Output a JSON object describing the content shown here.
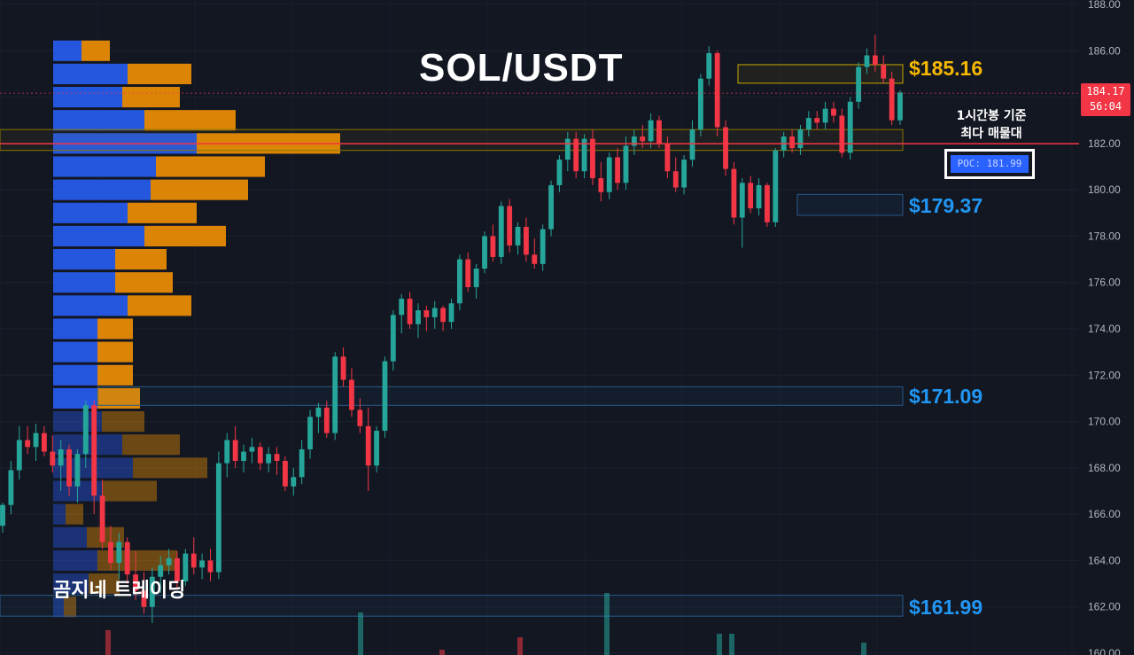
{
  "header": {
    "title": "SOL/USDT"
  },
  "brand": {
    "label": "곰지네 트레이딩"
  },
  "current_price": {
    "value": "184.17",
    "countdown": "56:04"
  },
  "poc_note": {
    "line1": "1시간봉 기준",
    "line2": "최다 매물대",
    "badge": "POC: 181.99"
  },
  "levels": {
    "l1": "$185.16",
    "l2": "$179.37",
    "l3": "$171.09",
    "l4": "$161.99"
  },
  "colors": {
    "bg": "#131722",
    "up": "#26a69a",
    "down": "#f23645",
    "buy": "#2962ff",
    "sell": "#ff9800",
    "poc": "#f23645"
  },
  "chart_data": {
    "type": "candlestick",
    "ylim": [
      160,
      188
    ],
    "yticks": [
      "160.00",
      "162.00",
      "164.00",
      "166.00",
      "168.00",
      "170.00",
      "172.00",
      "174.00",
      "176.00",
      "178.00",
      "180.00",
      "182.00",
      "184.00",
      "186.00",
      "188.00"
    ],
    "candles": [
      [
        165.5,
        166.5,
        165.2,
        166.4
      ],
      [
        166.4,
        168.3,
        166.0,
        167.9
      ],
      [
        167.9,
        169.8,
        167.5,
        169.2
      ],
      [
        169.2,
        169.8,
        168.6,
        168.9
      ],
      [
        168.9,
        169.9,
        168.3,
        169.5
      ],
      [
        169.5,
        169.8,
        168.5,
        168.7
      ],
      [
        168.7,
        169.4,
        167.8,
        168.1
      ],
      [
        168.1,
        169.2,
        167.0,
        168.8
      ],
      [
        168.8,
        169.0,
        166.8,
        167.2
      ],
      [
        167.2,
        168.8,
        166.5,
        168.6
      ],
      [
        168.6,
        170.9,
        168.0,
        170.7
      ],
      [
        170.7,
        170.9,
        166.0,
        166.8
      ],
      [
        166.8,
        167.5,
        164.5,
        164.8
      ],
      [
        164.8,
        165.5,
        163.6,
        163.9
      ],
      [
        163.9,
        165.2,
        163.2,
        164.8
      ],
      [
        164.8,
        165.0,
        163.0,
        163.4
      ],
      [
        163.4,
        164.4,
        162.3,
        162.7
      ],
      [
        162.7,
        163.5,
        161.7,
        162.0
      ],
      [
        162.0,
        163.7,
        161.3,
        163.3
      ],
      [
        163.3,
        164.2,
        162.6,
        163.8
      ],
      [
        163.8,
        164.5,
        163.4,
        164.1
      ],
      [
        164.1,
        164.4,
        162.8,
        163.1
      ],
      [
        163.1,
        164.5,
        162.9,
        164.3
      ],
      [
        164.3,
        165.0,
        163.4,
        163.7
      ],
      [
        163.7,
        164.3,
        163.2,
        164.0
      ],
      [
        164.0,
        164.5,
        163.1,
        163.5
      ],
      [
        163.5,
        168.7,
        163.2,
        168.2
      ],
      [
        168.2,
        169.5,
        167.6,
        169.2
      ],
      [
        169.2,
        169.8,
        168.0,
        168.3
      ],
      [
        168.3,
        169.0,
        167.8,
        168.7
      ],
      [
        168.7,
        169.3,
        168.2,
        168.9
      ],
      [
        168.9,
        169.1,
        167.9,
        168.2
      ],
      [
        168.2,
        168.9,
        167.8,
        168.6
      ],
      [
        168.6,
        168.9,
        167.7,
        168.3
      ],
      [
        168.3,
        168.5,
        167.0,
        167.2
      ],
      [
        167.2,
        168.0,
        166.8,
        167.6
      ],
      [
        167.6,
        169.2,
        167.3,
        168.8
      ],
      [
        168.8,
        170.5,
        168.4,
        170.2
      ],
      [
        170.2,
        170.8,
        169.5,
        170.6
      ],
      [
        170.6,
        170.9,
        169.3,
        169.5
      ],
      [
        169.5,
        173.0,
        169.2,
        172.8
      ],
      [
        172.8,
        173.2,
        171.5,
        171.8
      ],
      [
        171.8,
        172.3,
        170.2,
        170.5
      ],
      [
        170.5,
        171.0,
        169.5,
        169.8
      ],
      [
        169.8,
        170.6,
        167.0,
        168.1
      ],
      [
        168.1,
        169.8,
        167.8,
        169.6
      ],
      [
        169.6,
        172.8,
        169.3,
        172.6
      ],
      [
        172.6,
        174.8,
        172.2,
        174.6
      ],
      [
        174.6,
        175.5,
        173.8,
        175.3
      ],
      [
        175.3,
        175.6,
        174.0,
        174.2
      ],
      [
        174.2,
        175.1,
        173.6,
        174.8
      ],
      [
        174.8,
        175.0,
        173.9,
        174.5
      ],
      [
        174.5,
        175.2,
        174.0,
        174.9
      ],
      [
        174.9,
        175.0,
        173.9,
        174.3
      ],
      [
        174.3,
        175.3,
        174.0,
        175.1
      ],
      [
        175.1,
        177.2,
        174.8,
        177.0
      ],
      [
        177.0,
        177.3,
        175.6,
        175.8
      ],
      [
        175.8,
        176.8,
        175.3,
        176.6
      ],
      [
        176.6,
        178.2,
        176.4,
        178.0
      ],
      [
        178.0,
        178.5,
        176.9,
        177.1
      ],
      [
        177.1,
        179.5,
        176.8,
        179.3
      ],
      [
        179.3,
        179.6,
        177.3,
        177.6
      ],
      [
        177.6,
        178.6,
        177.2,
        178.4
      ],
      [
        178.4,
        178.8,
        176.9,
        177.2
      ],
      [
        177.2,
        177.9,
        176.6,
        176.8
      ],
      [
        176.8,
        178.5,
        176.5,
        178.3
      ],
      [
        178.3,
        180.4,
        178.0,
        180.2
      ],
      [
        180.2,
        181.5,
        179.9,
        181.3
      ],
      [
        181.3,
        182.5,
        180.8,
        182.2
      ],
      [
        182.2,
        182.5,
        180.5,
        180.8
      ],
      [
        180.8,
        182.4,
        180.5,
        182.2
      ],
      [
        182.2,
        182.6,
        180.2,
        180.5
      ],
      [
        180.5,
        181.2,
        179.5,
        179.9
      ],
      [
        179.9,
        181.6,
        179.6,
        181.4
      ],
      [
        181.4,
        181.8,
        180.0,
        180.3
      ],
      [
        180.3,
        182.3,
        180.0,
        181.9
      ],
      [
        181.9,
        182.6,
        181.5,
        182.3
      ],
      [
        182.3,
        182.8,
        181.8,
        182.1
      ],
      [
        182.1,
        183.3,
        181.8,
        183.0
      ],
      [
        183.0,
        183.2,
        181.8,
        182.0
      ],
      [
        182.0,
        182.3,
        180.5,
        180.8
      ],
      [
        180.8,
        181.4,
        179.9,
        180.1
      ],
      [
        180.1,
        181.5,
        179.8,
        181.3
      ],
      [
        181.3,
        183.0,
        181.0,
        182.6
      ],
      [
        182.6,
        185.0,
        182.3,
        184.8
      ],
      [
        184.8,
        186.2,
        184.5,
        185.9
      ],
      [
        185.9,
        186.0,
        182.3,
        182.7
      ],
      [
        182.7,
        183.0,
        180.6,
        180.9
      ],
      [
        180.9,
        181.2,
        178.5,
        178.8
      ],
      [
        178.8,
        180.5,
        177.5,
        180.3
      ],
      [
        180.3,
        180.6,
        179.0,
        179.2
      ],
      [
        179.2,
        180.5,
        178.9,
        180.2
      ],
      [
        180.2,
        180.3,
        178.4,
        178.6
      ],
      [
        178.6,
        181.8,
        178.4,
        181.7
      ],
      [
        181.7,
        182.5,
        181.4,
        182.3
      ],
      [
        182.3,
        182.6,
        181.6,
        181.8
      ],
      [
        181.8,
        182.8,
        181.5,
        182.6
      ],
      [
        182.6,
        183.4,
        182.3,
        183.1
      ],
      [
        183.1,
        183.4,
        182.6,
        182.9
      ],
      [
        182.9,
        183.8,
        182.6,
        183.5
      ],
      [
        183.5,
        183.8,
        182.9,
        183.2
      ],
      [
        183.2,
        183.5,
        181.4,
        181.6
      ],
      [
        181.6,
        184.0,
        181.3,
        183.8
      ],
      [
        183.8,
        185.5,
        183.5,
        185.3
      ],
      [
        185.3,
        186.1,
        185.0,
        185.8
      ],
      [
        185.8,
        186.7,
        185.1,
        185.4
      ],
      [
        185.4,
        185.8,
        184.6,
        184.8
      ],
      [
        184.8,
        185.1,
        182.8,
        183.0
      ],
      [
        183.0,
        184.3,
        182.8,
        184.2
      ]
    ],
    "volume_profile": [
      {
        "price": 162.0,
        "buy": 12,
        "sell": 14
      },
      {
        "price": 163.0,
        "buy": 40,
        "sell": 35
      },
      {
        "price": 164.0,
        "buy": 50,
        "sell": 90
      },
      {
        "price": 165.0,
        "buy": 38,
        "sell": 42
      },
      {
        "price": 166.0,
        "buy": 14,
        "sell": 20
      },
      {
        "price": 167.0,
        "buy": 55,
        "sell": 62
      },
      {
        "price": 168.0,
        "buy": 90,
        "sell": 84
      },
      {
        "price": 169.0,
        "buy": 78,
        "sell": 65
      },
      {
        "price": 170.0,
        "buy": 55,
        "sell": 48
      },
      {
        "price": 171.0,
        "buy": 50,
        "sell": 48
      },
      {
        "price": 172.0,
        "buy": 50,
        "sell": 40
      },
      {
        "price": 173.0,
        "buy": 50,
        "sell": 40
      },
      {
        "price": 174.0,
        "buy": 50,
        "sell": 40
      },
      {
        "price": 175.0,
        "buy": 84,
        "sell": 72
      },
      {
        "price": 176.0,
        "buy": 70,
        "sell": 65
      },
      {
        "price": 177.0,
        "buy": 70,
        "sell": 58
      },
      {
        "price": 178.0,
        "buy": 103,
        "sell": 92
      },
      {
        "price": 179.0,
        "buy": 84,
        "sell": 78
      },
      {
        "price": 180.0,
        "buy": 110,
        "sell": 110
      },
      {
        "price": 181.0,
        "buy": 116,
        "sell": 123
      },
      {
        "price": 182.0,
        "buy": 162,
        "sell": 162
      },
      {
        "price": 183.0,
        "buy": 103,
        "sell": 103
      },
      {
        "price": 184.0,
        "buy": 78,
        "sell": 65
      },
      {
        "price": 185.0,
        "buy": 84,
        "sell": 72
      },
      {
        "price": 186.0,
        "buy": 32,
        "sell": 32
      }
    ],
    "poc": 181.99,
    "zones": [
      {
        "top": 185.4,
        "bottom": 184.6
      },
      {
        "top": 179.8,
        "bottom": 178.9
      },
      {
        "top": 171.5,
        "bottom": 170.7
      },
      {
        "top": 162.5,
        "bottom": 161.6
      }
    ]
  }
}
